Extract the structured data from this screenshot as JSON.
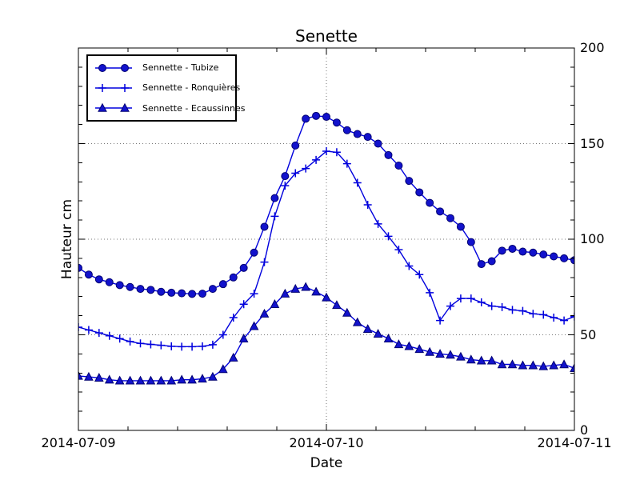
{
  "chart_data": {
    "type": "line",
    "title": "Senette",
    "xlabel": "Date",
    "ylabel": "Hauteur cm",
    "xtick_labels": [
      "2014-07-09",
      "2014-07-10",
      "2014-07-11"
    ],
    "ytick_labels": [
      "0",
      "50",
      "100",
      "150",
      "200"
    ],
    "ytick_values": [
      0,
      50,
      100,
      150,
      200
    ],
    "ylim": [
      0,
      200
    ],
    "x_range_hours": [
      0,
      48
    ],
    "x_step_hours": 1,
    "grid": true,
    "legend_position": "upper left",
    "line_color": "#0000dd",
    "marker_fill": "#1212cc",
    "marker_edge": "#000070",
    "series": [
      {
        "name": "Sennette - Tubize",
        "marker": "circle",
        "values": [
          85,
          81.5,
          79,
          77.5,
          76,
          75,
          74,
          73.5,
          72.5,
          72,
          71.7,
          71.4,
          71.5,
          74,
          76.5,
          80,
          85,
          93,
          106.5,
          121.5,
          133,
          149,
          163,
          164.5,
          164,
          161,
          157,
          155,
          153.5,
          150,
          144,
          138.5,
          130.5,
          124.5,
          119,
          114.5,
          111,
          106.5,
          98.5,
          87,
          88.5,
          94,
          95,
          93.5,
          93,
          92,
          91,
          90,
          89
        ]
      },
      {
        "name": "Sennette - Ronquières",
        "marker": "plus",
        "values": [
          54,
          52.5,
          51,
          49.5,
          48,
          46.5,
          45.5,
          45,
          44.5,
          44,
          43.8,
          43.8,
          44,
          44.8,
          50,
          59,
          66,
          71.5,
          88,
          112,
          128,
          134.5,
          137,
          141.5,
          146,
          145.5,
          139.5,
          129.5,
          118,
          108,
          101.5,
          94.5,
          86,
          81.5,
          72,
          57.5,
          65,
          69,
          69,
          67,
          65,
          64.5,
          63,
          62.5,
          61,
          60.5,
          59,
          57.5,
          59.5
        ]
      },
      {
        "name": "Sennette - Ecaussinnes",
        "marker": "triangle",
        "values": [
          28.5,
          28,
          27.5,
          26.5,
          26,
          26,
          26,
          26,
          26,
          26,
          26.5,
          26.5,
          27,
          28,
          32,
          38,
          48,
          54.5,
          61,
          66,
          71.5,
          74,
          75,
          72.5,
          69.5,
          65.5,
          61.5,
          56.5,
          53,
          50.5,
          48,
          45,
          44,
          42.5,
          41,
          40,
          39.5,
          38.5,
          37,
          36.5,
          36.5,
          34.5,
          34.5,
          34,
          34,
          33.5,
          34,
          34.5,
          32.5
        ]
      }
    ]
  }
}
